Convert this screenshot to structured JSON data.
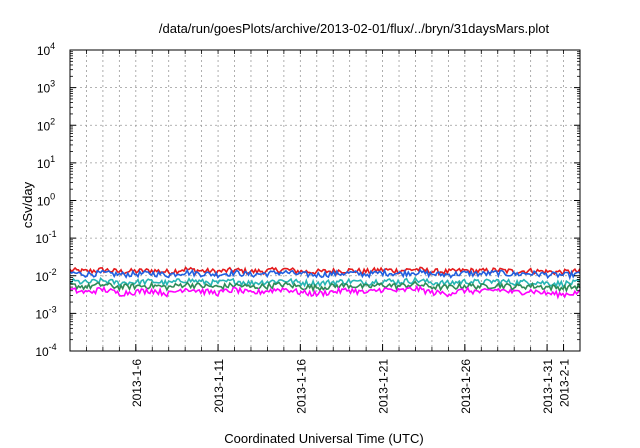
{
  "chart_data": {
    "type": "line",
    "title": "/data/run/goesPlots/archive/2013-02-01/flux/../bryn/31daysMars.plot",
    "xlabel": "Coordinated Universal Time (UTC)",
    "ylabel": "cSv/day",
    "yscale": "log",
    "ylim": [
      0.0001,
      10000
    ],
    "xlim": [
      "2013-01-02",
      "2013-02-02"
    ],
    "grid": true,
    "y_ticks": [
      {
        "base": "10",
        "exp": "-4"
      },
      {
        "base": "10",
        "exp": "-3"
      },
      {
        "base": "10",
        "exp": "-2"
      },
      {
        "base": "10",
        "exp": "-1"
      },
      {
        "base": "10",
        "exp": "0"
      },
      {
        "base": "10",
        "exp": "1"
      },
      {
        "base": "10",
        "exp": "2"
      },
      {
        "base": "10",
        "exp": "3"
      },
      {
        "base": "10",
        "exp": "4"
      }
    ],
    "x_ticks": [
      {
        "date": "2013-01-06",
        "label": "2013-1-6"
      },
      {
        "date": "2013-01-11",
        "label": "2013-1-11"
      },
      {
        "date": "2013-01-16",
        "label": "2013-1-16"
      },
      {
        "date": "2013-01-21",
        "label": "2013-1-21"
      },
      {
        "date": "2013-01-26",
        "label": "2013-1-26"
      },
      {
        "date": "2013-01-31",
        "label": "2013-1-31"
      },
      {
        "date": "2013-02-01",
        "label": "2013-2-1"
      }
    ],
    "series": [
      {
        "color": "#e41a1c",
        "level": 0.0135,
        "values": [
          0.014,
          0.013,
          0.0145,
          0.0128,
          0.0132,
          0.0138,
          0.0126,
          0.015,
          0.0135,
          0.013,
          0.0142,
          0.0128,
          0.0136,
          0.0148,
          0.013,
          0.0127,
          0.0134,
          0.014,
          0.0129,
          0.0145,
          0.0135,
          0.015,
          0.0131,
          0.0128,
          0.0139,
          0.0133,
          0.0141,
          0.013,
          0.0136,
          0.0128,
          0.0125,
          0.0132
        ]
      },
      {
        "color": "#1f5fe0",
        "level": 0.0115,
        "values": [
          0.012,
          0.011,
          0.0118,
          0.0108,
          0.0112,
          0.0116,
          0.0106,
          0.0125,
          0.0114,
          0.0109,
          0.0121,
          0.0108,
          0.0115,
          0.0124,
          0.011,
          0.0106,
          0.0113,
          0.0119,
          0.0109,
          0.0122,
          0.0114,
          0.0126,
          0.0111,
          0.0107,
          0.0118,
          0.0112,
          0.012,
          0.011,
          0.0116,
          0.0108,
          0.0104,
          0.0111
        ]
      },
      {
        "color": "#26b5b5",
        "level": 0.007,
        "values": [
          0.0072,
          0.0066,
          0.0074,
          0.0064,
          0.0068,
          0.0071,
          0.0063,
          0.0078,
          0.0069,
          0.0065,
          0.0073,
          0.0064,
          0.007,
          0.0076,
          0.0066,
          0.0063,
          0.0068,
          0.0072,
          0.0065,
          0.0075,
          0.0069,
          0.0077,
          0.0066,
          0.0064,
          0.0071,
          0.0067,
          0.0073,
          0.0066,
          0.007,
          0.0064,
          0.0062,
          0.0067
        ]
      },
      {
        "color": "#2e8b57",
        "level": 0.0055,
        "values": [
          0.0056,
          0.0051,
          0.0058,
          0.005,
          0.0053,
          0.0055,
          0.0049,
          0.006,
          0.0054,
          0.005,
          0.0057,
          0.005,
          0.0054,
          0.0059,
          0.0051,
          0.0049,
          0.0053,
          0.0056,
          0.005,
          0.0058,
          0.0053,
          0.006,
          0.0051,
          0.0049,
          0.0055,
          0.0052,
          0.0057,
          0.0051,
          0.0054,
          0.005,
          0.0048,
          0.0052
        ]
      },
      {
        "color": "#ff00ff",
        "level": 0.004,
        "values": [
          0.0042,
          0.0036,
          0.0044,
          0.0034,
          0.0038,
          0.0041,
          0.0033,
          0.0046,
          0.0039,
          0.0035,
          0.0043,
          0.0034,
          0.004,
          0.0045,
          0.0036,
          0.0033,
          0.0038,
          0.0042,
          0.0035,
          0.0044,
          0.0039,
          0.0046,
          0.0036,
          0.0034,
          0.0041,
          0.0037,
          0.0043,
          0.0036,
          0.004,
          0.0034,
          0.0032,
          0.0037
        ]
      }
    ]
  }
}
